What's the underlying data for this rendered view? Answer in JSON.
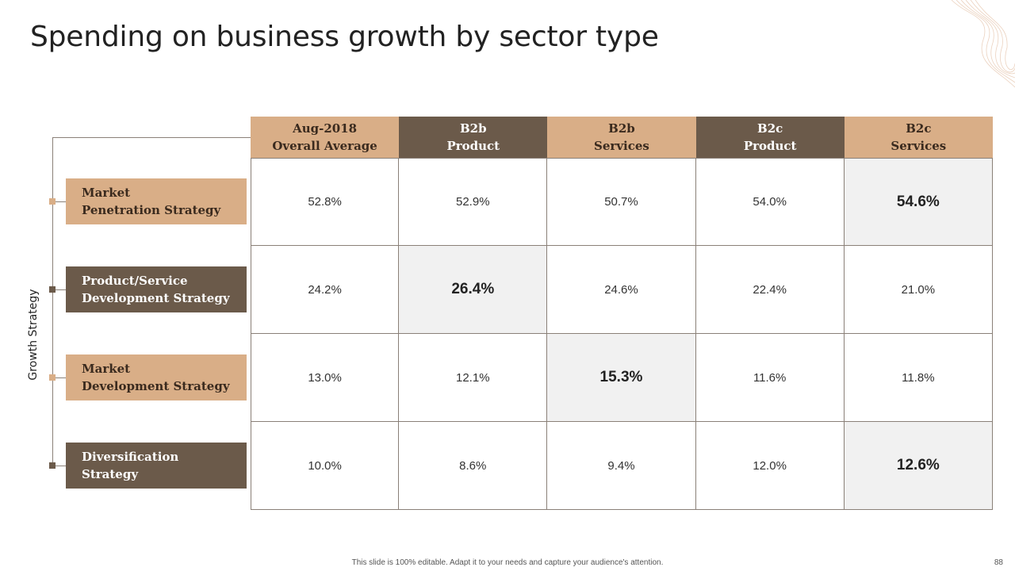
{
  "slide": {
    "title": "Spending on business growth by sector type",
    "axis_label": "Growth Strategy",
    "footer": "This slide is 100% editable. Adapt it to your needs and capture your audience's attention.",
    "page_number": "88"
  },
  "colors": {
    "tan": "#d9ae87",
    "brown": "#6b5a4a",
    "highlight": "#f1f1f1"
  },
  "table": {
    "headers": [
      {
        "label": "Aug-2018\nOverall Average",
        "style": "tan"
      },
      {
        "label": "B2b\nProduct",
        "style": "brown"
      },
      {
        "label": "B2b\nServices",
        "style": "tan"
      },
      {
        "label": "B2c\nProduct",
        "style": "brown"
      },
      {
        "label": "B2c\nServices",
        "style": "tan"
      }
    ],
    "rows": [
      {
        "strategy": "Market\nPenetration Strategy",
        "style": "tan",
        "values": [
          "52.8%",
          "52.9%",
          "50.7%",
          "54.0%",
          "54.6%"
        ],
        "highlight_index": 4
      },
      {
        "strategy": "Product/Service\nDevelopment Strategy",
        "style": "brown",
        "values": [
          "24.2%",
          "26.4%",
          "24.6%",
          "22.4%",
          "21.0%"
        ],
        "highlight_index": 1
      },
      {
        "strategy": "Market\nDevelopment Strategy",
        "style": "tan",
        "values": [
          "13.0%",
          "12.1%",
          "15.3%",
          "11.6%",
          "11.8%"
        ],
        "highlight_index": 2
      },
      {
        "strategy": "Diversification\nStrategy",
        "style": "brown",
        "values": [
          "10.0%",
          "8.6%",
          "9.4%",
          "12.0%",
          "12.6%"
        ],
        "highlight_index": 4
      }
    ]
  }
}
